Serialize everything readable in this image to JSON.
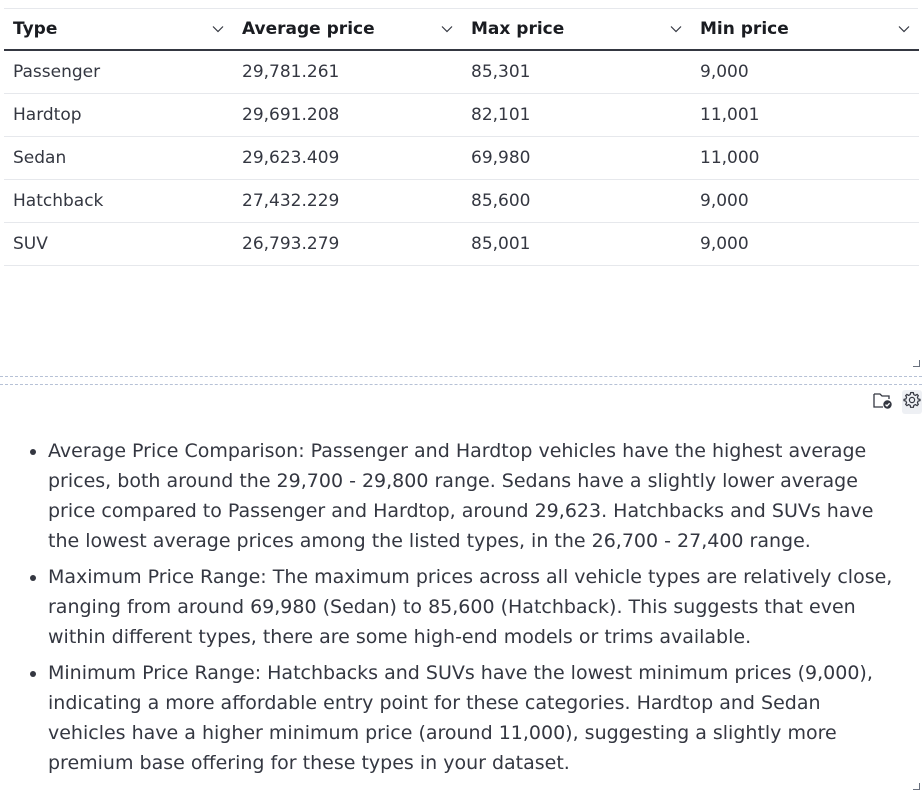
{
  "table": {
    "columns": [
      "Type",
      "Average price",
      "Max price",
      "Min price"
    ],
    "rows": [
      [
        "Passenger",
        "29,781.261",
        "85,301",
        "9,000"
      ],
      [
        "Hardtop",
        "29,691.208",
        "82,101",
        "11,001"
      ],
      [
        "Sedan",
        "29,623.409",
        "69,980",
        "11,000"
      ],
      [
        "Hatchback",
        "27,432.229",
        "85,600",
        "9,000"
      ],
      [
        "SUV",
        "26,793.279",
        "85,001",
        "9,000"
      ]
    ]
  },
  "toolbar": {
    "icons": [
      "save-to-folder-icon",
      "gear-icon"
    ]
  },
  "insights": {
    "items": [
      "Average Price Comparison: Passenger and Hardtop vehicles have the highest average prices, both around the 29,700 - 29,800 range. Sedans have a slightly lower average price compared to Passenger and Hardtop, around 29,623. Hatchbacks and SUVs have the lowest average prices among the listed types, in the 26,700 - 27,400 range.",
      "Maximum Price Range: The maximum prices across all vehicle types are relatively close, ranging from around 69,980 (Sedan) to 85,600 (Hatchback). This suggests that even within different types, there are some high-end models or trims available.",
      "Minimum Price Range: Hatchbacks and SUVs have the lowest minimum prices (9,000), indicating a more affordable entry point for these categories. Hardtop and Sedan vehicles have a higher minimum price (around 11,000), suggesting a slightly more premium base offering for these types in your dataset."
    ]
  },
  "colors": {
    "header_border": "#343741",
    "row_border": "#e6e8ec",
    "text": "#343741",
    "splitter": "#b6c1d6"
  }
}
